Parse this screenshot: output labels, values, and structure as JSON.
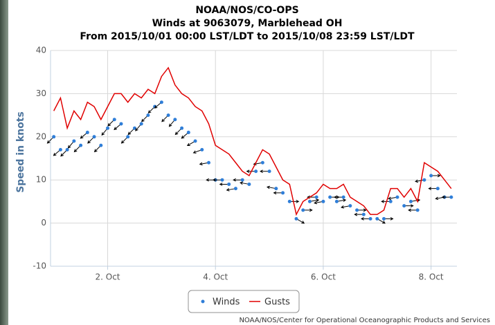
{
  "chart_data": {
    "type": "line",
    "title": "NOAA/NOS/CO-OPS",
    "subtitle": "Winds at 9063079, Marblehead OH",
    "subtitle2": "From 2015/10/01 00:00 LST/LDT to 2015/10/08 23:59 LST/LDT",
    "y_label": "Speed in knots",
    "credit": "NOAA/NOS/Center for Operational Oceanographic Products and Services",
    "xlim": [
      0.94,
      8.48
    ],
    "xticks": [
      {
        "value": 2,
        "label": "2. Oct"
      },
      {
        "value": 4,
        "label": "4. Oct"
      },
      {
        "value": 6,
        "label": "6. Oct"
      },
      {
        "value": 8,
        "label": "8. Oct"
      }
    ],
    "ylim": [
      -10,
      40
    ],
    "yticks": [
      -10,
      0,
      10,
      20,
      30,
      40
    ],
    "grid": true,
    "x": [
      1.0,
      1.125,
      1.25,
      1.375,
      1.5,
      1.625,
      1.75,
      1.875,
      2.0,
      2.125,
      2.25,
      2.375,
      2.5,
      2.625,
      2.75,
      2.875,
      3.0,
      3.125,
      3.25,
      3.375,
      3.5,
      3.625,
      3.75,
      3.875,
      4.0,
      4.125,
      4.25,
      4.375,
      4.5,
      4.625,
      4.75,
      4.875,
      5.0,
      5.125,
      5.25,
      5.375,
      5.5,
      5.625,
      5.75,
      5.875,
      6.0,
      6.125,
      6.25,
      6.375,
      6.5,
      6.625,
      6.75,
      6.875,
      7.0,
      7.125,
      7.25,
      7.375,
      7.5,
      7.625,
      7.75,
      7.875,
      8.0,
      8.125,
      8.25,
      8.375
    ],
    "series": [
      {
        "name": "Winds",
        "type": "scatter",
        "color": "#2f7ed8",
        "values": [
          20,
          17,
          17,
          19,
          18,
          21,
          20,
          18,
          22,
          24,
          23,
          20,
          22,
          23,
          25,
          27,
          28,
          25,
          24,
          22,
          21,
          19,
          17,
          14,
          10,
          10,
          9,
          8,
          10,
          9,
          12,
          14,
          12,
          8,
          7,
          5,
          1,
          3,
          5,
          6,
          5,
          6,
          5,
          6,
          4,
          3,
          2,
          1,
          1,
          1,
          5,
          6,
          4,
          5,
          3,
          10,
          11,
          8,
          6,
          6
        ],
        "directions": [
          45,
          50,
          45,
          40,
          45,
          50,
          45,
          45,
          40,
          45,
          50,
          45,
          45,
          40,
          45,
          45,
          50,
          45,
          40,
          45,
          50,
          60,
          70,
          80,
          90,
          90,
          90,
          80,
          90,
          100,
          90,
          80,
          90,
          100,
          90,
          270,
          300,
          270,
          260,
          90,
          80,
          270,
          260,
          90,
          80,
          270,
          90,
          90,
          300,
          270,
          90,
          80,
          270,
          260,
          90,
          80,
          270,
          90,
          80,
          90
        ]
      },
      {
        "name": "Gusts",
        "type": "line",
        "color": "#e00000",
        "values": [
          26,
          29,
          22,
          26,
          24,
          28,
          27,
          24,
          27,
          30,
          30,
          28,
          30,
          29,
          31,
          30,
          34,
          36,
          32,
          30,
          29,
          27,
          26,
          23,
          18,
          17,
          16,
          14,
          12,
          11,
          14,
          17,
          16,
          13,
          10,
          9,
          2,
          5,
          6,
          7,
          9,
          8,
          8,
          9,
          6,
          5,
          4,
          2,
          2,
          3,
          8,
          8,
          6,
          8,
          5,
          14,
          13,
          12,
          10,
          8
        ]
      }
    ]
  }
}
